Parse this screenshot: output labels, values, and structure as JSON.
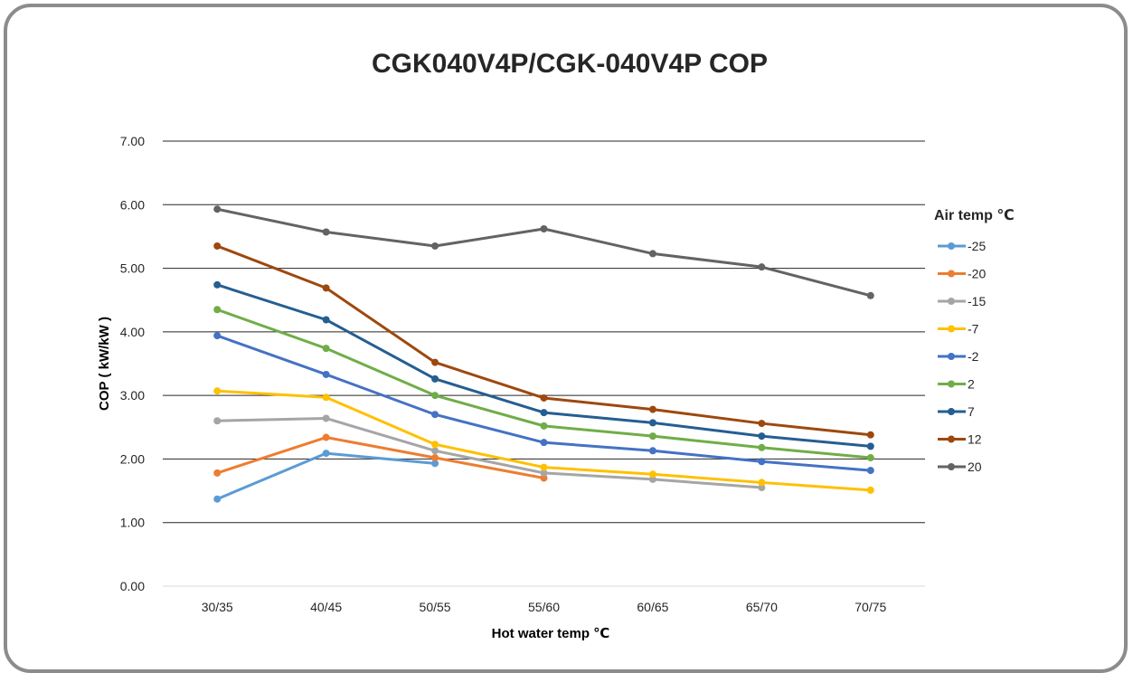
{
  "chart_data": {
    "type": "line",
    "title": "CGK040V4P/CGK-040V4P COP",
    "xlabel": "Hot water temp ℃",
    "ylabel": "COP ( kW/kW )",
    "categories": [
      "30/35",
      "40/45",
      "50/55",
      "55/60",
      "60/65",
      "65/70",
      "70/75"
    ],
    "ylim": [
      0,
      7
    ],
    "yticks": [
      "0.00",
      "1.00",
      "2.00",
      "3.00",
      "4.00",
      "5.00",
      "6.00",
      "7.00"
    ],
    "grid": true,
    "legend_title": "Air temp ℃",
    "legend_position": "right",
    "series": [
      {
        "name": "-25",
        "color": "#5b9bd5",
        "values": [
          1.37,
          2.09,
          1.93,
          null,
          null,
          null,
          null
        ]
      },
      {
        "name": "-20",
        "color": "#ed7d31",
        "values": [
          1.78,
          2.34,
          2.02,
          1.7,
          null,
          null,
          null
        ]
      },
      {
        "name": "-15",
        "color": "#a5a5a5",
        "values": [
          2.6,
          2.64,
          2.13,
          1.78,
          1.68,
          1.55,
          null
        ]
      },
      {
        "name": "-7",
        "color": "#ffc000",
        "values": [
          3.07,
          2.97,
          2.23,
          1.87,
          1.76,
          1.63,
          1.51
        ]
      },
      {
        "name": "-2",
        "color": "#4472c4",
        "values": [
          3.94,
          3.33,
          2.7,
          2.26,
          2.13,
          1.96,
          1.82
        ]
      },
      {
        "name": "2",
        "color": "#70ad47",
        "values": [
          4.35,
          3.74,
          3.0,
          2.52,
          2.36,
          2.18,
          2.02
        ]
      },
      {
        "name": "7",
        "color": "#255e91",
        "values": [
          4.74,
          4.19,
          3.26,
          2.73,
          2.57,
          2.36,
          2.2
        ]
      },
      {
        "name": "12",
        "color": "#9e480e",
        "values": [
          5.35,
          4.69,
          3.52,
          2.96,
          2.78,
          2.56,
          2.38
        ]
      },
      {
        "name": "20",
        "color": "#636363",
        "values": [
          5.93,
          5.57,
          5.35,
          5.62,
          5.23,
          5.02,
          4.57
        ]
      }
    ]
  }
}
